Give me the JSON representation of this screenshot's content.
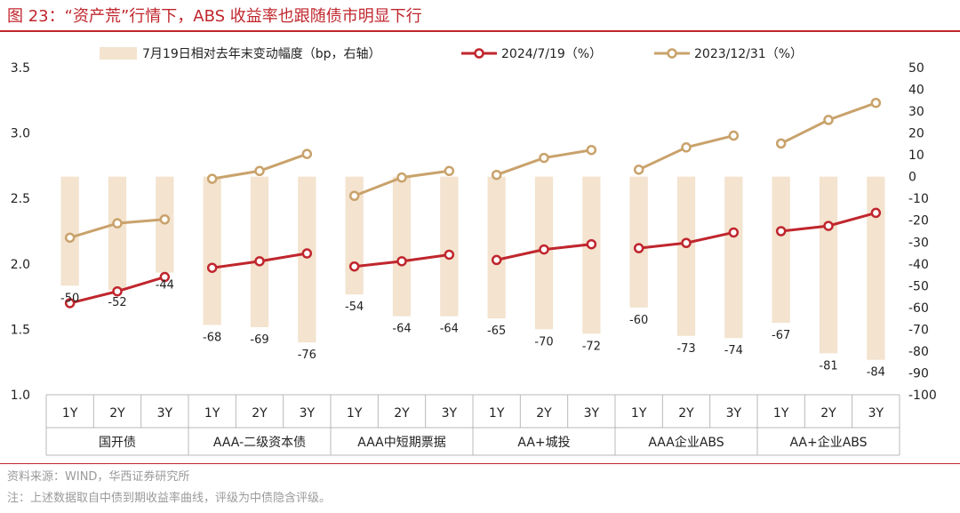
{
  "figure": {
    "title": "图 23：“资产荒”行情下，ABS 收益率也跟随债市明显下行",
    "source": "资料来源：WIND，华西证券研究所",
    "note": "注：上述数据取自中债到期收益率曲线，评级为中债隐含评级。"
  },
  "chart_data": {
    "type": "bar",
    "categories": [
      "1Y",
      "2Y",
      "3Y",
      "1Y",
      "2Y",
      "3Y",
      "1Y",
      "2Y",
      "3Y",
      "1Y",
      "2Y",
      "3Y",
      "1Y",
      "2Y",
      "3Y",
      "1Y",
      "2Y",
      "3Y"
    ],
    "groups": [
      {
        "label": "国开债",
        "count": 3
      },
      {
        "label": "AAA-二级资本债",
        "count": 3
      },
      {
        "label": "AAA中短期票据",
        "count": 3
      },
      {
        "label": "AA+城投",
        "count": 3
      },
      {
        "label": "AAA企业ABS",
        "count": 3
      },
      {
        "label": "AA+企业ABS",
        "count": 3
      }
    ],
    "series": [
      {
        "name": "7月19日相对去年末变动幅度（bp，右轴）",
        "kind": "bar",
        "axis": "right",
        "color": "#f3e3cf",
        "values": [
          -50,
          -52,
          -44,
          -68,
          -69,
          -76,
          -54,
          -64,
          -64,
          -65,
          -70,
          -72,
          -60,
          -73,
          -74,
          -67,
          -81,
          -84
        ]
      },
      {
        "name": "2024/7/19（%）",
        "kind": "line",
        "axis": "left",
        "color": "#c0262d",
        "values": [
          1.7,
          1.79,
          1.9,
          1.97,
          2.02,
          2.08,
          1.98,
          2.02,
          2.07,
          2.03,
          2.11,
          2.15,
          2.12,
          2.16,
          2.24,
          2.25,
          2.29,
          2.39
        ]
      },
      {
        "name": "2023/12/31（%）",
        "kind": "line",
        "axis": "left",
        "color": "#c9a26b",
        "values": [
          2.2,
          2.31,
          2.34,
          2.65,
          2.71,
          2.84,
          2.52,
          2.66,
          2.71,
          2.68,
          2.81,
          2.87,
          2.72,
          2.89,
          2.98,
          2.92,
          3.1,
          3.23
        ]
      }
    ],
    "bar_labels": [
      "-50",
      "-52",
      "-44",
      "-68",
      "-69",
      "-76",
      "-54",
      "-64",
      "-64",
      "-65",
      "-70",
      "-72",
      "-60",
      "-73",
      "-74",
      "-67",
      "-81",
      "-84"
    ],
    "ylim_left": [
      1.0,
      3.5
    ],
    "yticks_left": [
      "1.0",
      "1.5",
      "2.0",
      "2.5",
      "3.0",
      "3.5"
    ],
    "ylim_right": [
      -100,
      50
    ],
    "yticks_right": [
      "-100",
      "-90",
      "-80",
      "-70",
      "-60",
      "-50",
      "-40",
      "-30",
      "-20",
      "-10",
      "0",
      "10",
      "20",
      "30",
      "40",
      "50"
    ],
    "grid": false,
    "legend_position": "top"
  }
}
